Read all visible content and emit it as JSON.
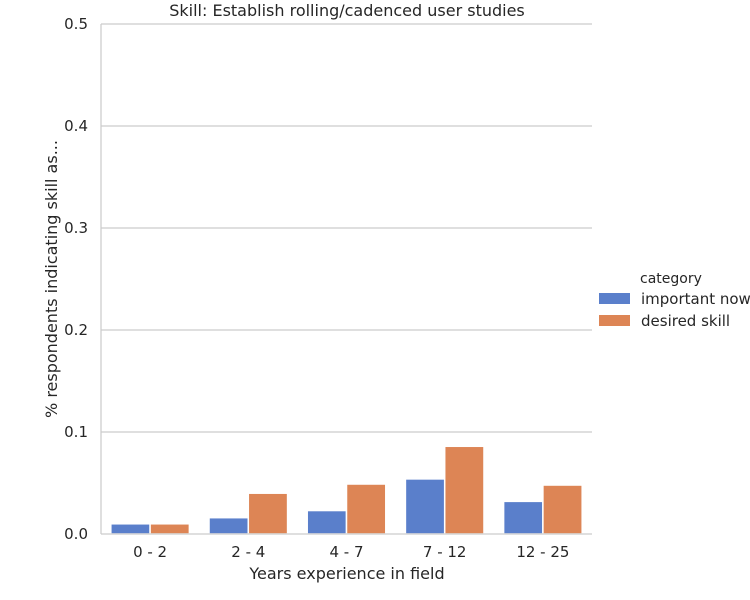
{
  "chart_data": {
    "type": "bar",
    "title": "Skill: Establish rolling/cadenced user studies",
    "xlabel": "Years experience in field",
    "ylabel": "% respondents indicating skill as...",
    "categories": [
      "0 - 2",
      "2 - 4",
      "4 - 7",
      "7 - 12",
      "12 - 25"
    ],
    "series": [
      {
        "name": "important now",
        "color": "#5a7fcb",
        "values": [
          0.01,
          0.016,
          0.023,
          0.054,
          0.032
        ]
      },
      {
        "name": "desired skill",
        "color": "#dd8555",
        "values": [
          0.01,
          0.04,
          0.049,
          0.086,
          0.048
        ]
      }
    ],
    "ylim": [
      0,
      0.5
    ],
    "yticks": [
      "0.0",
      "0.1",
      "0.2",
      "0.3",
      "0.4",
      "0.5"
    ],
    "grid": "horizontal",
    "legend": {
      "title": "category",
      "placement": "right"
    }
  }
}
